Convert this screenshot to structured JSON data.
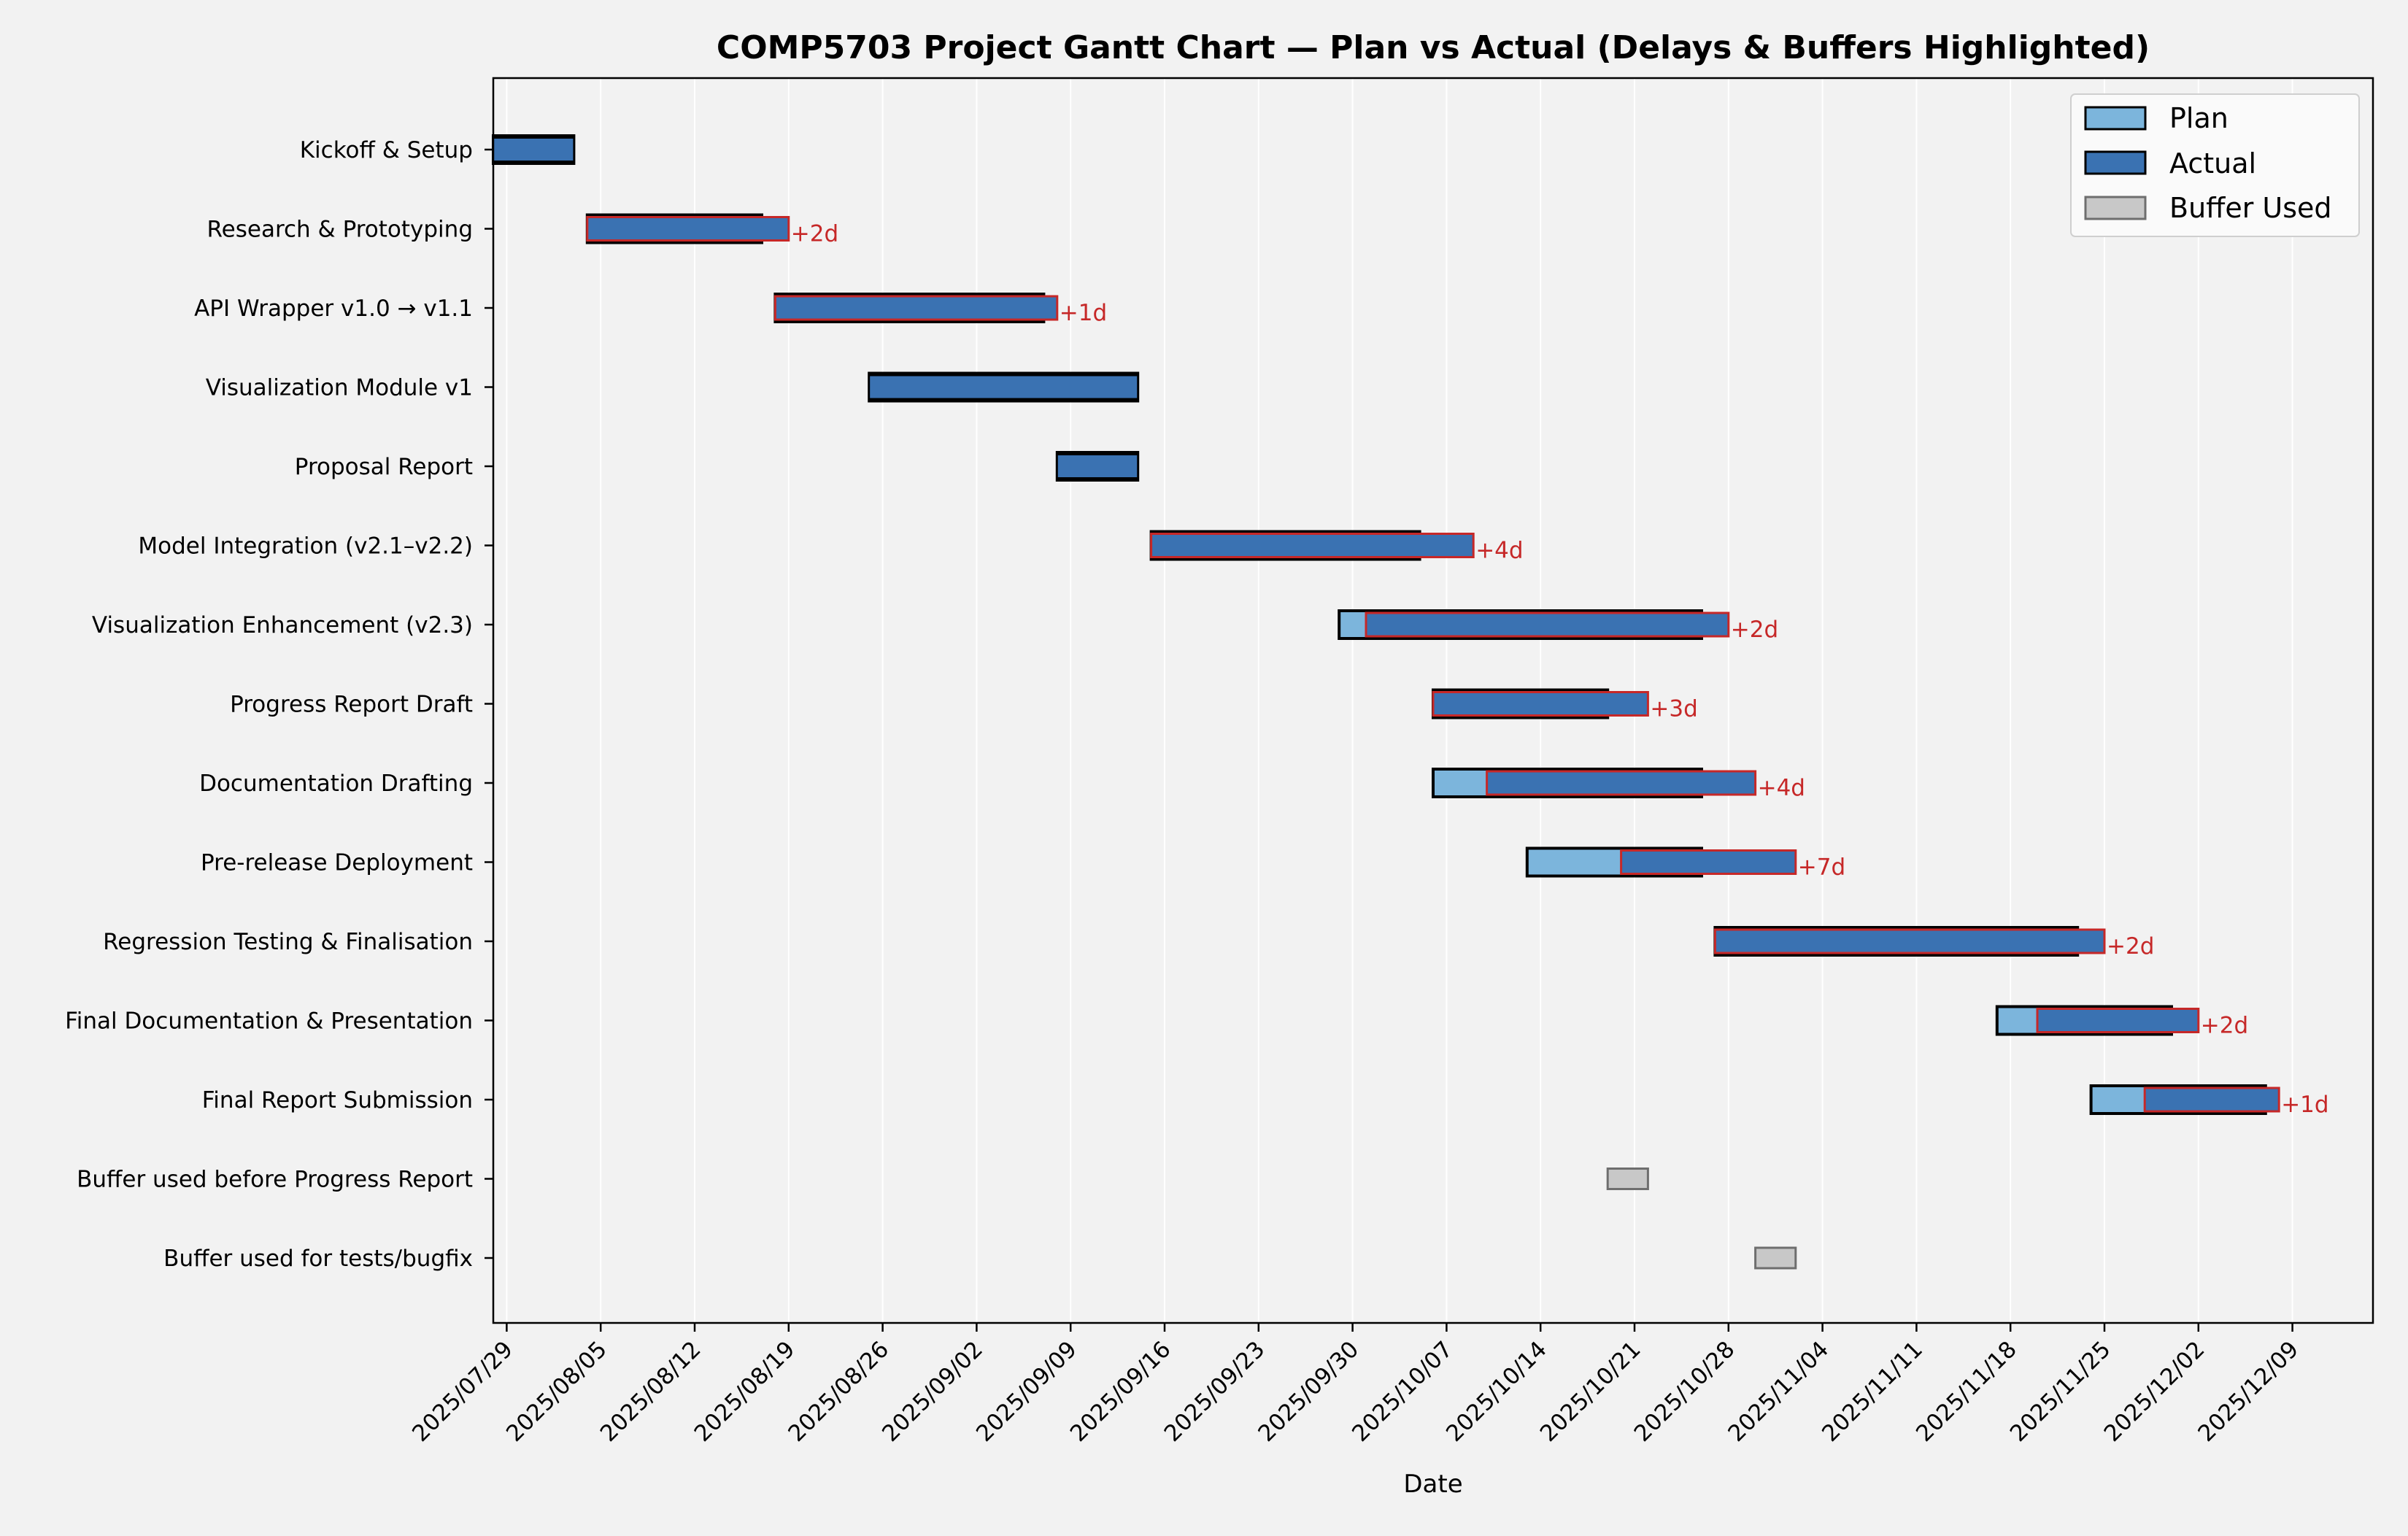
{
  "chart_data": {
    "type": "gantt",
    "title": "COMP5703 Project Gantt Chart — Plan vs Actual (Delays & Buffers Highlighted)",
    "xlabel": "Date",
    "ylabel": "",
    "xlim": [
      "2025-07-28",
      "2025-12-15"
    ],
    "grid": "vertical",
    "legend_position": "top-right",
    "colors": {
      "plan": "#7cb5dc",
      "actual": "#3a72b2",
      "buffer": "#c8c8c8",
      "delay": "#c62828",
      "background": "#f2f2f2",
      "grid": "#ffffff"
    },
    "legend": [
      {
        "key": "plan",
        "label": "Plan"
      },
      {
        "key": "actual",
        "label": "Actual"
      },
      {
        "key": "buffer",
        "label": "Buffer Used"
      }
    ],
    "x_ticks": [
      "2025/07/29",
      "2025/08/05",
      "2025/08/12",
      "2025/08/19",
      "2025/08/26",
      "2025/09/02",
      "2025/09/09",
      "2025/09/16",
      "2025/09/23",
      "2025/09/30",
      "2025/10/07",
      "2025/10/14",
      "2025/10/21",
      "2025/10/28",
      "2025/11/04",
      "2025/11/11",
      "2025/11/18",
      "2025/11/25",
      "2025/12/02",
      "2025/12/09"
    ],
    "tasks": [
      {
        "name": "Kickoff & Setup",
        "plan": [
          "2025-07-28",
          "2025-08-03"
        ],
        "actual": [
          "2025-07-28",
          "2025-08-03"
        ],
        "delay": ""
      },
      {
        "name": "Research & Prototyping",
        "plan": [
          "2025-08-04",
          "2025-08-17"
        ],
        "actual": [
          "2025-08-04",
          "2025-08-19"
        ],
        "delay": "+2d"
      },
      {
        "name": "API Wrapper v1.0 → v1.1",
        "plan": [
          "2025-08-18",
          "2025-09-07"
        ],
        "actual": [
          "2025-08-18",
          "2025-09-08"
        ],
        "delay": "+1d"
      },
      {
        "name": "Visualization Module v1",
        "plan": [
          "2025-08-25",
          "2025-09-14"
        ],
        "actual": [
          "2025-08-25",
          "2025-09-14"
        ],
        "delay": ""
      },
      {
        "name": "Proposal Report",
        "plan": [
          "2025-09-08",
          "2025-09-14"
        ],
        "actual": [
          "2025-09-08",
          "2025-09-14"
        ],
        "delay": ""
      },
      {
        "name": "Model Integration (v2.1–v2.2)",
        "plan": [
          "2025-09-15",
          "2025-10-05"
        ],
        "actual": [
          "2025-09-15",
          "2025-10-09"
        ],
        "delay": "+4d"
      },
      {
        "name": "Visualization Enhancement (v2.3)",
        "plan": [
          "2025-09-29",
          "2025-10-26"
        ],
        "actual": [
          "2025-10-01",
          "2025-10-28"
        ],
        "delay": "+2d"
      },
      {
        "name": "Progress Report Draft",
        "plan": [
          "2025-10-06",
          "2025-10-19"
        ],
        "actual": [
          "2025-10-06",
          "2025-10-22"
        ],
        "delay": "+3d"
      },
      {
        "name": "Documentation Drafting",
        "plan": [
          "2025-10-06",
          "2025-10-26"
        ],
        "actual": [
          "2025-10-10",
          "2025-10-30"
        ],
        "delay": "+4d"
      },
      {
        "name": "Pre-release Deployment",
        "plan": [
          "2025-10-13",
          "2025-10-26"
        ],
        "actual": [
          "2025-10-20",
          "2025-11-02"
        ],
        "delay": "+7d"
      },
      {
        "name": "Regression Testing & Finalisation",
        "plan": [
          "2025-10-27",
          "2025-11-23"
        ],
        "actual": [
          "2025-10-27",
          "2025-11-25"
        ],
        "delay": "+2d"
      },
      {
        "name": "Final Documentation & Presentation",
        "plan": [
          "2025-11-17",
          "2025-11-30"
        ],
        "actual": [
          "2025-11-20",
          "2025-12-02"
        ],
        "delay": "+2d"
      },
      {
        "name": "Final Report Submission",
        "plan": [
          "2025-11-24",
          "2025-12-07"
        ],
        "actual": [
          "2025-11-28",
          "2025-12-08"
        ],
        "delay": "+1d"
      }
    ],
    "buffers": [
      {
        "name": "Buffer used before Progress Report",
        "range": [
          "2025-10-19",
          "2025-10-22"
        ]
      },
      {
        "name": "Buffer used for tests/bugfix",
        "range": [
          "2025-10-30",
          "2025-11-02"
        ]
      }
    ]
  }
}
